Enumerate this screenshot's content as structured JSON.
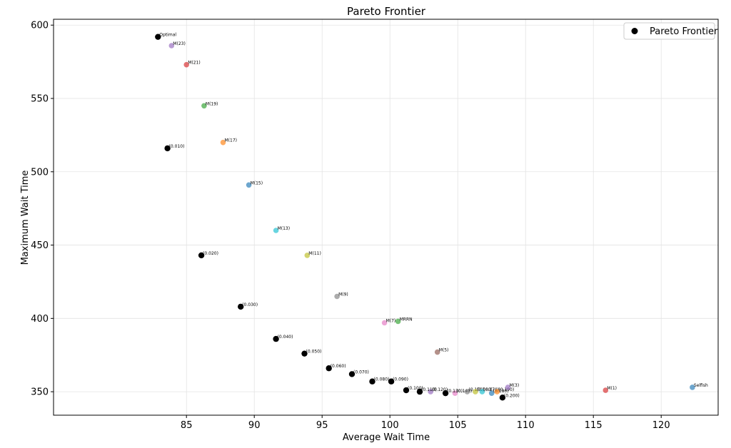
{
  "chart_data": {
    "type": "scatter",
    "title": "Pareto Frontier",
    "xlabel": "Average Wait Time",
    "ylabel": "Maximum Wait Time",
    "xlim": [
      75.2,
      124.2
    ],
    "ylim": [
      334,
      604
    ],
    "x_ticks": [
      85,
      90,
      95,
      100,
      105,
      110,
      115,
      120
    ],
    "y_ticks": [
      350,
      400,
      450,
      500,
      550,
      600
    ],
    "grid": true,
    "legend": {
      "placement": "top-right",
      "entries": [
        {
          "label": "Pareto Frontier",
          "color": "#000000"
        }
      ]
    },
    "points": [
      {
        "label": "Optimal",
        "x": 82.9,
        "y": 592,
        "color": "#000000"
      },
      {
        "label": "(0.010)",
        "x": 83.6,
        "y": 516,
        "color": "#000000"
      },
      {
        "label": "(0.020)",
        "x": 86.1,
        "y": 443,
        "color": "#000000"
      },
      {
        "label": "(0.030)",
        "x": 89.0,
        "y": 408,
        "color": "#000000"
      },
      {
        "label": "(0.040)",
        "x": 91.6,
        "y": 386,
        "color": "#000000"
      },
      {
        "label": "(0.050)",
        "x": 93.7,
        "y": 376,
        "color": "#000000"
      },
      {
        "label": "(0.060)",
        "x": 95.5,
        "y": 366,
        "color": "#000000"
      },
      {
        "label": "(0.070)",
        "x": 97.2,
        "y": 362,
        "color": "#000000"
      },
      {
        "label": "(0.080)",
        "x": 98.7,
        "y": 357,
        "color": "#000000"
      },
      {
        "label": "(0.090)",
        "x": 100.1,
        "y": 357,
        "color": "#000000"
      },
      {
        "label": "(0.100)",
        "x": 101.2,
        "y": 351,
        "color": "#000000"
      },
      {
        "label": "(0.110)",
        "x": 102.2,
        "y": 350,
        "color": "#000000"
      },
      {
        "label": "(0.120)",
        "x": 103.0,
        "y": 350,
        "color": "#9467bd"
      },
      {
        "label": "(0.130)",
        "x": 104.1,
        "y": 349,
        "color": "#000000"
      },
      {
        "label": "(0.140)",
        "x": 104.8,
        "y": 349,
        "color": "#e377c2"
      },
      {
        "label": "(0.150)",
        "x": 105.7,
        "y": 350,
        "color": "#7f7f7f"
      },
      {
        "label": "(0.160)",
        "x": 106.3,
        "y": 350,
        "color": "#bcbd22"
      },
      {
        "label": "(0.170)",
        "x": 106.8,
        "y": 350,
        "color": "#17becf"
      },
      {
        "label": "(0.180)",
        "x": 107.5,
        "y": 349,
        "color": "#1f77b4"
      },
      {
        "label": "(0.190)",
        "x": 107.9,
        "y": 350,
        "color": "#ff7f0e"
      },
      {
        "label": "(0.200)",
        "x": 108.3,
        "y": 346,
        "color": "#000000"
      },
      {
        "label": "M(23)",
        "x": 83.9,
        "y": 586,
        "color": "#9467bd"
      },
      {
        "label": "M(21)",
        "x": 85.0,
        "y": 573,
        "color": "#d62728"
      },
      {
        "label": "M(19)",
        "x": 86.3,
        "y": 545,
        "color": "#2ca02c"
      },
      {
        "label": "M(17)",
        "x": 87.7,
        "y": 520,
        "color": "#ff7f0e"
      },
      {
        "label": "M(15)",
        "x": 89.6,
        "y": 491,
        "color": "#1f77b4"
      },
      {
        "label": "M(13)",
        "x": 91.6,
        "y": 460,
        "color": "#17becf"
      },
      {
        "label": "M(11)",
        "x": 93.9,
        "y": 443,
        "color": "#bcbd22"
      },
      {
        "label": "M(9)",
        "x": 96.1,
        "y": 415,
        "color": "#7f7f7f"
      },
      {
        "label": "M(7)",
        "x": 99.6,
        "y": 397,
        "color": "#e377c2"
      },
      {
        "label": "MRRN",
        "x": 100.6,
        "y": 398,
        "color": "#2ca02c"
      },
      {
        "label": "M(5)",
        "x": 103.5,
        "y": 377,
        "color": "#8c564b"
      },
      {
        "label": "M(3)",
        "x": 108.7,
        "y": 353,
        "color": "#9467bd"
      },
      {
        "label": "M(1)",
        "x": 115.9,
        "y": 351,
        "color": "#d62728"
      },
      {
        "label": "Selfish",
        "x": 122.3,
        "y": 353,
        "color": "#1f77b4"
      }
    ]
  }
}
